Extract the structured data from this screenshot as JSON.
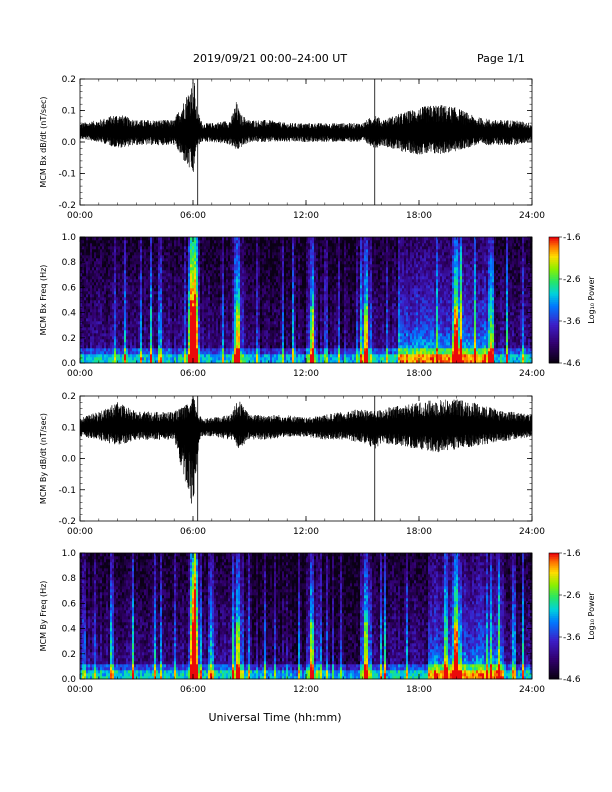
{
  "header": {
    "date_range": "2019/09/21  00:00–24:00 UT",
    "page": "Page 1/1"
  },
  "xlabel": "Universal Time (hh:mm)",
  "chart_data": [
    {
      "type": "line",
      "title": "",
      "ylabel": "MCM Bx dB/dt (nT/sec)",
      "xlabel": "",
      "xlim": [
        0,
        24
      ],
      "ylim": [
        -0.2,
        0.2
      ],
      "x_ticks": [
        "00:00",
        "06:00",
        "12:00",
        "18:00",
        "24:00"
      ],
      "y_ticks": [
        "-0.2",
        "-0.1",
        "0.0",
        "0.1",
        "0.2"
      ],
      "baseline": 0.03,
      "series": [
        {
          "x": [
            0,
            1,
            2,
            3,
            4,
            5,
            5.9,
            6.0,
            6.05,
            6.1,
            6.15,
            6.3,
            6.5,
            7,
            8,
            8.3,
            8.5,
            9,
            10,
            11,
            12,
            13,
            14,
            15,
            15.7,
            16,
            17,
            18,
            19,
            20,
            21,
            22,
            23,
            24
          ],
          "y_max": [
            0.06,
            0.07,
            0.09,
            0.07,
            0.07,
            0.07,
            0.18,
            0.2,
            0.2,
            0.19,
            0.12,
            0.09,
            0.06,
            0.06,
            0.07,
            0.13,
            0.09,
            0.07,
            0.07,
            0.06,
            0.06,
            0.06,
            0.06,
            0.06,
            0.09,
            0.07,
            0.09,
            0.11,
            0.12,
            0.11,
            0.08,
            0.07,
            0.07,
            0.06
          ],
          "y_min": [
            0.01,
            0.0,
            -0.02,
            -0.01,
            -0.01,
            -0.01,
            -0.1,
            -0.11,
            -0.1,
            -0.09,
            -0.02,
            -0.01,
            0.0,
            0.0,
            -0.01,
            -0.03,
            -0.02,
            0.0,
            0.0,
            0.0,
            0.0,
            0.0,
            0.0,
            0.0,
            -0.02,
            -0.01,
            -0.03,
            -0.04,
            -0.04,
            -0.03,
            -0.01,
            -0.01,
            -0.01,
            0.0
          ]
        }
      ],
      "spikes": [
        6.25,
        15.65
      ]
    },
    {
      "type": "heatmap",
      "title": "",
      "ylabel": "MCM Bx Freq (Hz)",
      "xlabel": "",
      "xlim": [
        0,
        24
      ],
      "ylim": [
        0,
        1.0
      ],
      "x_ticks": [
        "00:00",
        "06:00",
        "12:00",
        "18:00",
        "24:00"
      ],
      "y_ticks": [
        "0.0",
        "0.2",
        "0.4",
        "0.6",
        "0.8",
        "1.0"
      ],
      "colorbar": {
        "label": "Log₁₀ Power",
        "ticks": [
          "-1.6",
          "-2.6",
          "-3.6",
          "-4.6"
        ],
        "range": [
          -4.6,
          -1.6
        ]
      },
      "activity_hours": [
        6.0,
        6.1,
        8.4,
        12.3,
        15.2,
        20.0
      ],
      "broadband_band": {
        "start": 17.0,
        "end": 22.0,
        "top_hz": 0.3
      }
    },
    {
      "type": "line",
      "title": "",
      "ylabel": "MCM By dB/dt (nT/sec)",
      "xlabel": "",
      "xlim": [
        0,
        24
      ],
      "ylim": [
        -0.2,
        0.2
      ],
      "x_ticks": [
        "00:00",
        "06:00",
        "12:00",
        "18:00",
        "24:00"
      ],
      "y_ticks": [
        "-0.2",
        "-0.1",
        "0.0",
        "0.1",
        "0.2"
      ],
      "baseline": 0.1,
      "series": [
        {
          "x": [
            0,
            1,
            2,
            3,
            4,
            5,
            5.9,
            6.0,
            6.05,
            6.1,
            6.3,
            6.5,
            7,
            8,
            8.4,
            9,
            10,
            11,
            12,
            13,
            14,
            15,
            15.7,
            16,
            17,
            18,
            19,
            20,
            21,
            22,
            23,
            24
          ],
          "y_max": [
            0.13,
            0.15,
            0.18,
            0.15,
            0.15,
            0.15,
            0.18,
            0.2,
            0.2,
            0.18,
            0.14,
            0.13,
            0.13,
            0.14,
            0.19,
            0.14,
            0.14,
            0.14,
            0.13,
            0.14,
            0.15,
            0.16,
            0.15,
            0.16,
            0.17,
            0.18,
            0.19,
            0.19,
            0.18,
            0.16,
            0.15,
            0.14
          ],
          "y_min": [
            0.07,
            0.06,
            0.04,
            0.06,
            0.06,
            0.06,
            -0.15,
            -0.17,
            -0.14,
            -0.1,
            0.05,
            0.07,
            0.07,
            0.06,
            0.03,
            0.06,
            0.06,
            0.07,
            0.07,
            0.06,
            0.06,
            0.05,
            0.03,
            0.05,
            0.04,
            0.03,
            0.02,
            0.03,
            0.04,
            0.05,
            0.06,
            0.07
          ]
        }
      ],
      "spikes": [
        6.25,
        15.65
      ]
    },
    {
      "type": "heatmap",
      "title": "",
      "ylabel": "MCM By Freq (Hz)",
      "xlabel": "",
      "xlim": [
        0,
        24
      ],
      "ylim": [
        0,
        1.0
      ],
      "x_ticks": [
        "00:00",
        "06:00",
        "12:00",
        "18:00",
        "24:00"
      ],
      "y_ticks": [
        "0.0",
        "0.2",
        "0.4",
        "0.6",
        "0.8",
        "1.0"
      ],
      "colorbar": {
        "label": "Log₁₀ Power",
        "ticks": [
          "-1.6",
          "-2.6",
          "-3.6",
          "-4.6"
        ],
        "range": [
          -4.6,
          -1.6
        ]
      },
      "activity_hours": [
        6.0,
        6.1,
        8.4,
        12.3,
        15.2,
        20.0
      ],
      "broadband_band": {
        "start": 18.5,
        "end": 22.5,
        "top_hz": 0.25
      }
    }
  ]
}
